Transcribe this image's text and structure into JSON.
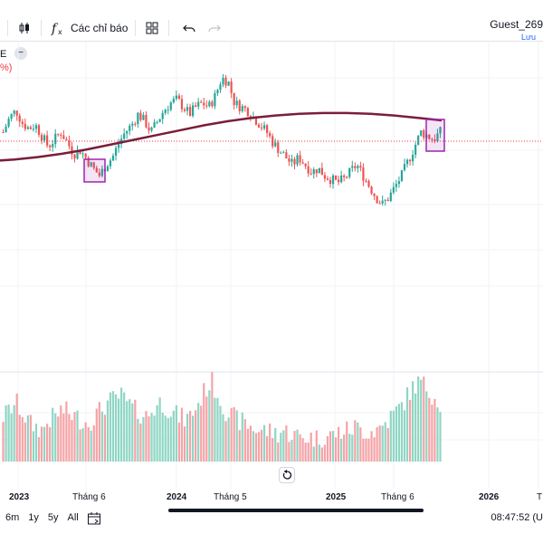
{
  "toolbar": {
    "candles_icon": "candlestick-icon",
    "indicators_label": "Các chỉ báo",
    "indicators_icon": "fx-icon",
    "layout_icon": "grid-icon",
    "undo_icon": "undo-icon",
    "redo_icon": "redo-icon"
  },
  "user": {
    "name": "Guest_269",
    "save_label": "Lưu"
  },
  "legend": {
    "e_label": "E",
    "pct_label": "%)"
  },
  "time_axis": {
    "ticks": [
      {
        "label": "2023",
        "year": true
      },
      {
        "label": "Tháng 6",
        "year": false
      },
      {
        "label": "2024",
        "year": true
      },
      {
        "label": "Tháng 5",
        "year": false
      },
      {
        "label": "2025",
        "year": true
      },
      {
        "label": "Tháng 6",
        "year": false
      },
      {
        "label": "2026",
        "year": true
      },
      {
        "label": "T",
        "year": false
      }
    ]
  },
  "ranges": [
    "6m",
    "1y",
    "5y",
    "All"
  ],
  "clock": "08:47:52 (U",
  "colors": {
    "up": "#26a69a",
    "down": "#ef5350",
    "ma": "#7b1d3a",
    "highlight": "#9c27b0",
    "price_line": "#f23645"
  },
  "chart_data": {
    "type": "candlestick",
    "price_path": [
      0.7,
      0.78,
      0.82,
      0.75,
      0.72,
      0.74,
      0.68,
      0.62,
      0.66,
      0.7,
      0.64,
      0.58,
      0.6,
      0.55,
      0.5,
      0.46,
      0.52,
      0.56,
      0.64,
      0.7,
      0.74,
      0.8,
      0.76,
      0.7,
      0.76,
      0.82,
      0.86,
      0.88,
      0.84,
      0.8,
      0.84,
      0.86,
      0.84,
      0.9,
      1.0,
      0.98,
      0.86,
      0.84,
      0.82,
      0.78,
      0.74,
      0.7,
      0.64,
      0.6,
      0.56,
      0.52,
      0.56,
      0.52,
      0.48,
      0.5,
      0.46,
      0.44,
      0.42,
      0.44,
      0.48,
      0.52,
      0.46,
      0.4,
      0.34,
      0.3,
      0.34,
      0.4,
      0.46,
      0.54,
      0.62,
      0.7,
      0.68,
      0.66,
      0.7
    ],
    "volume_path": [
      0.5,
      0.6,
      0.7,
      0.55,
      0.4,
      0.35,
      0.3,
      0.45,
      0.5,
      0.6,
      0.55,
      0.5,
      0.45,
      0.4,
      0.5,
      0.6,
      0.7,
      0.75,
      0.8,
      0.7,
      0.6,
      0.55,
      0.5,
      0.6,
      0.7,
      0.65,
      0.55,
      0.5,
      0.45,
      0.55,
      0.7,
      0.9,
      1.0,
      0.8,
      0.6,
      0.5,
      0.45,
      0.4,
      0.35,
      0.3,
      0.3,
      0.28,
      0.25,
      0.3,
      0.25,
      0.22,
      0.2,
      0.2,
      0.18,
      0.2,
      0.22,
      0.25,
      0.28,
      0.3,
      0.35,
      0.3,
      0.28,
      0.3,
      0.35,
      0.45,
      0.55,
      0.65,
      0.8,
      0.95,
      1.0,
      0.9,
      0.8,
      0.7
    ],
    "ma_path": [
      0.4,
      0.42,
      0.45,
      0.49,
      0.54,
      0.6,
      0.66,
      0.72,
      0.78,
      0.84,
      0.89,
      0.93,
      0.96,
      0.98,
      0.99,
      0.99,
      0.98,
      0.96,
      0.93,
      0.9
    ]
  }
}
